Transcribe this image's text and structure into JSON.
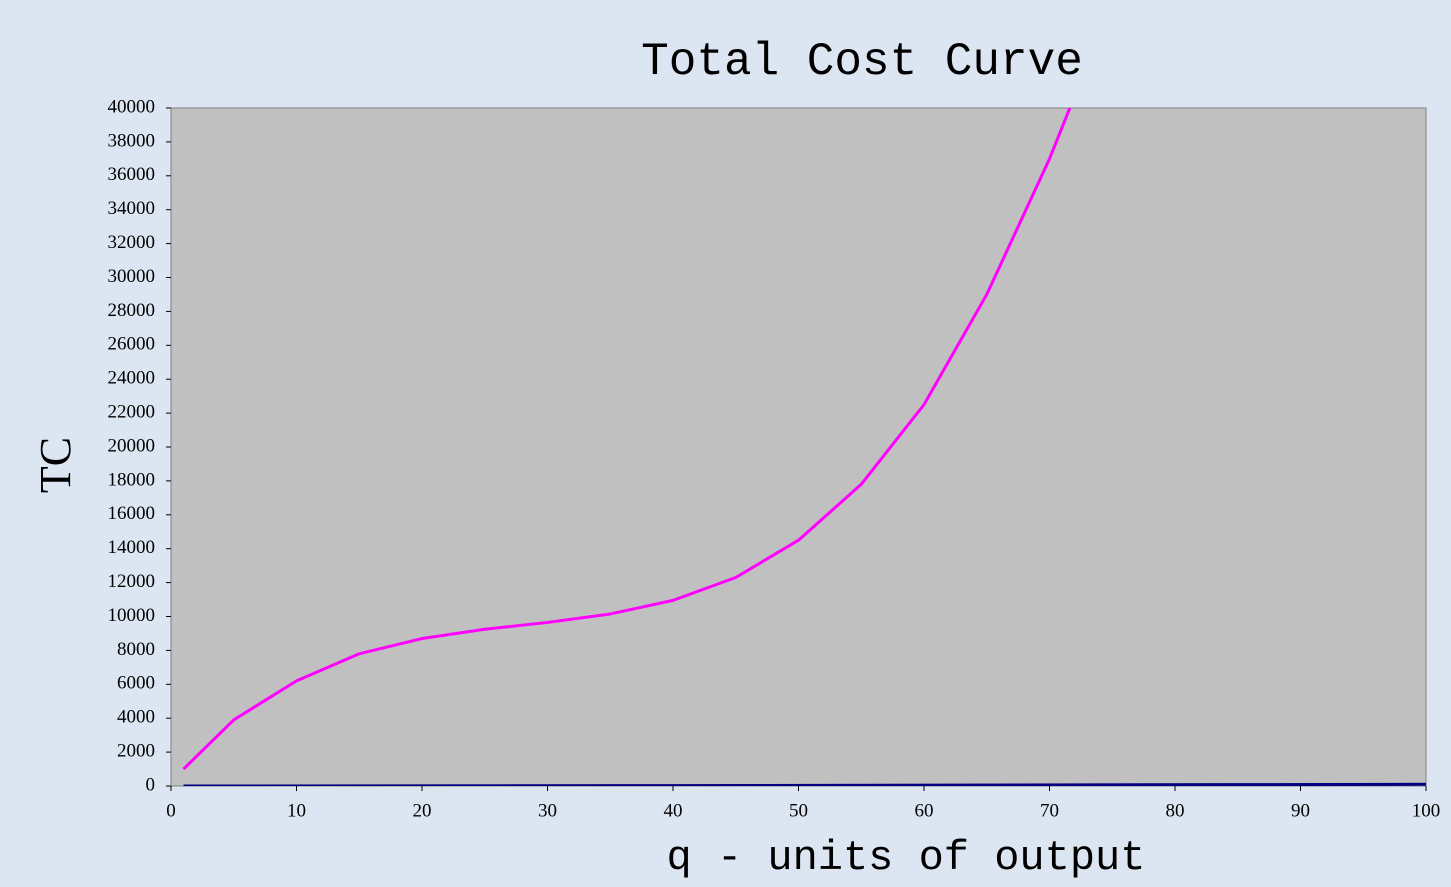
{
  "chart_data": {
    "type": "line",
    "title": "Total Cost Curve",
    "x_label": "q - units of output",
    "y_label": "TC",
    "series": [
      {
        "color": "#ff00ff",
        "x": [
          1,
          5,
          10,
          15,
          20,
          25,
          30,
          35,
          40,
          45,
          50,
          55,
          60,
          65,
          70,
          72
        ],
        "values": [
          1000,
          3900,
          6200,
          7800,
          8700,
          9250,
          9650,
          10150,
          10950,
          12300,
          14500,
          17800,
          22500,
          29000,
          37000,
          40700
        ]
      },
      {
        "color": "#000080",
        "x": [
          1,
          40,
          84,
          100
        ],
        "values": [
          0,
          20,
          80,
          100
        ]
      }
    ],
    "xlim": [
      0,
      100
    ],
    "xticks": [
      0,
      10,
      20,
      30,
      40,
      50,
      60,
      70,
      80,
      90,
      100
    ],
    "ylim": [
      0,
      40000
    ],
    "yticks": [
      0,
      2000,
      4000,
      6000,
      8000,
      10000,
      12000,
      14000,
      16000,
      18000,
      20000,
      22000,
      24000,
      26000,
      28000,
      30000,
      32000,
      34000,
      36000,
      38000,
      40000
    ],
    "plot_background": "#c0c0c0",
    "grid": false
  }
}
